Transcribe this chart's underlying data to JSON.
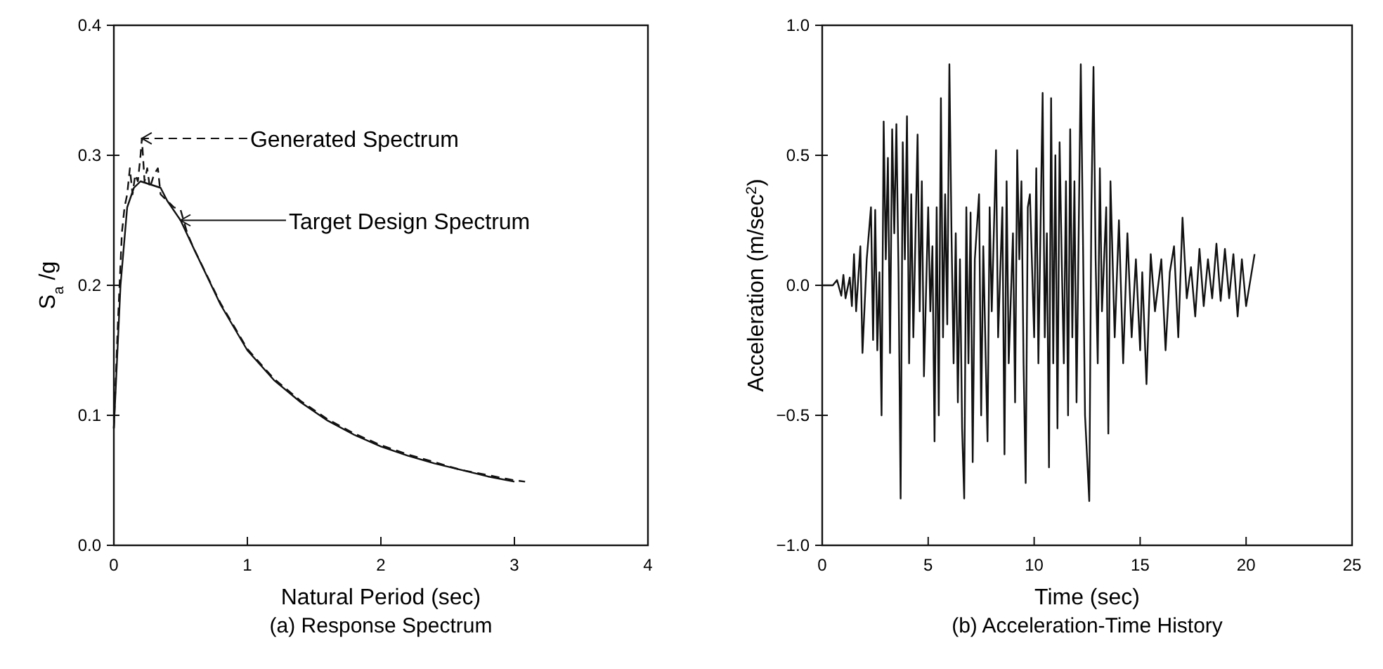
{
  "chart_data": [
    {
      "type": "line",
      "title": "(a) Response Spectrum",
      "xlabel": "Natural Period (sec)",
      "ylabel": "S$_{a}$ /g",
      "xlim": [
        0,
        4
      ],
      "ylim": [
        0,
        0.4
      ],
      "xticks": [
        0,
        1,
        2,
        3,
        4
      ],
      "yticks": [
        {
          "value": 0,
          "label": "0.0"
        },
        {
          "value": 0.1,
          "label": "0.1"
        },
        {
          "value": 0.2,
          "label": "0.2"
        },
        {
          "value": 0.3,
          "label": "0.3"
        },
        {
          "value": 0.4,
          "label": "0.4"
        }
      ],
      "grid": false,
      "legend": "top",
      "series": [
        {
          "name": "Generated Spectrum",
          "color": "#111111",
          "line_style": "dashed",
          "x": [
            0,
            0.03,
            0.06,
            0.08,
            0.1,
            0.12,
            0.14,
            0.16,
            0.18,
            0.2,
            0.21,
            0.23,
            0.25,
            0.27,
            0.3,
            0.33,
            0.35,
            0.4,
            0.45,
            0.5,
            0.55,
            0.6,
            0.8,
            1.0,
            1.2,
            1.4,
            1.6,
            1.8,
            2.0,
            2.2,
            2.4,
            2.6,
            2.8,
            3.0,
            3.08
          ],
          "values": [
            0.09,
            0.17,
            0.24,
            0.26,
            0.27,
            0.29,
            0.27,
            0.285,
            0.28,
            0.3,
            0.313,
            0.28,
            0.29,
            0.275,
            0.285,
            0.29,
            0.27,
            0.265,
            0.26,
            0.258,
            0.24,
            0.228,
            0.186,
            0.151,
            0.128,
            0.111,
            0.097,
            0.086,
            0.077,
            0.07,
            0.064,
            0.058,
            0.054,
            0.05,
            0.049
          ]
        },
        {
          "name": "Target Design Spectrum",
          "color": "#111111",
          "line_style": "solid",
          "x": [
            0,
            0.05,
            0.1,
            0.15,
            0.2,
            0.35,
            0.4,
            0.5,
            0.6,
            0.8,
            1.0,
            1.2,
            1.4,
            1.6,
            1.8,
            2.0,
            2.2,
            2.4,
            2.6,
            2.8,
            3.0
          ],
          "values": [
            0.09,
            0.2,
            0.26,
            0.275,
            0.28,
            0.275,
            0.265,
            0.25,
            0.228,
            0.185,
            0.15,
            0.127,
            0.11,
            0.096,
            0.085,
            0.076,
            0.069,
            0.063,
            0.058,
            0.053,
            0.049
          ]
        }
      ]
    },
    {
      "type": "line",
      "title": "(b) Acceleration-Time History",
      "xlabel": "Time (sec)",
      "ylabel": "Acceleration (m/sec$^{2}$)",
      "xlim": [
        0,
        25
      ],
      "ylim": [
        -1,
        1
      ],
      "xticks": [
        0,
        5,
        10,
        15,
        20,
        25
      ],
      "yticks": [
        {
          "value": -1,
          "label": "−1.0"
        },
        {
          "value": -0.5,
          "label": "−0.5"
        },
        {
          "value": 0,
          "label": "0.0"
        },
        {
          "value": 0.5,
          "label": "0.5"
        },
        {
          "value": 1,
          "label": "1.0"
        }
      ],
      "grid": false,
      "legend": false,
      "series": [
        {
          "color": "#111111",
          "line_style": "solid",
          "x": [
            0,
            0.5,
            0.7,
            0.9,
            1.0,
            1.1,
            1.3,
            1.4,
            1.5,
            1.6,
            1.8,
            1.9,
            2.1,
            2.3,
            2.4,
            2.5,
            2.6,
            2.7,
            2.8,
            2.9,
            3.0,
            3.1,
            3.2,
            3.3,
            3.4,
            3.5,
            3.6,
            3.7,
            3.8,
            3.9,
            4.0,
            4.1,
            4.2,
            4.3,
            4.5,
            4.6,
            4.7,
            4.8,
            5.0,
            5.1,
            5.2,
            5.3,
            5.4,
            5.5,
            5.6,
            5.7,
            5.8,
            5.9,
            6.0,
            6.1,
            6.2,
            6.3,
            6.4,
            6.5,
            6.6,
            6.7,
            6.8,
            6.9,
            7.0,
            7.1,
            7.2,
            7.4,
            7.5,
            7.6,
            7.8,
            7.9,
            8.0,
            8.2,
            8.3,
            8.5,
            8.6,
            8.7,
            8.8,
            9.0,
            9.1,
            9.2,
            9.3,
            9.4,
            9.5,
            9.6,
            9.7,
            9.8,
            10.0,
            10.1,
            10.2,
            10.4,
            10.5,
            10.6,
            10.7,
            10.8,
            10.9,
            11.0,
            11.1,
            11.2,
            11.3,
            11.4,
            11.5,
            11.6,
            11.7,
            11.8,
            11.9,
            12.0,
            12.2,
            12.3,
            12.4,
            12.6,
            12.7,
            12.8,
            12.9,
            13.0,
            13.1,
            13.2,
            13.4,
            13.5,
            13.6,
            13.8,
            14.0,
            14.2,
            14.4,
            14.6,
            14.8,
            15.0,
            15.1,
            15.3,
            15.5,
            15.7,
            16.0,
            16.2,
            16.4,
            16.6,
            16.8,
            17.0,
            17.2,
            17.4,
            17.6,
            17.8,
            18.0,
            18.2,
            18.4,
            18.6,
            18.8,
            19.0,
            19.2,
            19.4,
            19.6,
            19.8,
            20.0,
            20.2,
            20.4
          ],
          "values": [
            0,
            0,
            0.02,
            -0.04,
            0.04,
            -0.05,
            0.03,
            -0.08,
            0.12,
            -0.1,
            0.15,
            -0.26,
            0.1,
            0.3,
            -0.21,
            0.29,
            -0.25,
            0.05,
            -0.5,
            0.63,
            0.1,
            0.49,
            -0.26,
            0.6,
            0.2,
            0.62,
            0.05,
            -0.82,
            0.55,
            0.1,
            0.65,
            -0.3,
            0.35,
            -0.2,
            0.58,
            -0.1,
            0.4,
            -0.35,
            0.3,
            -0.1,
            0.15,
            -0.6,
            0.3,
            -0.5,
            0.72,
            -0.2,
            0.35,
            -0.15,
            0.85,
            0.2,
            -0.3,
            0.2,
            -0.45,
            0.1,
            -0.55,
            -0.82,
            0.3,
            -0.3,
            0.28,
            -0.68,
            0.1,
            0.35,
            -0.5,
            0.15,
            -0.6,
            0.3,
            -0.1,
            0.52,
            -0.2,
            0.3,
            -0.65,
            0.4,
            -0.3,
            0.2,
            -0.45,
            0.52,
            0.1,
            0.4,
            -0.3,
            -0.76,
            0.3,
            0.35,
            -0.2,
            0.45,
            -0.3,
            0.74,
            -0.2,
            0.2,
            -0.7,
            0.72,
            -0.3,
            0.5,
            -0.55,
            0.55,
            0.1,
            -0.3,
            0.4,
            -0.5,
            0.6,
            -0.2,
            0.4,
            -0.45,
            0.85,
            0.2,
            -0.5,
            -0.83,
            0.3,
            0.84,
            0.1,
            -0.3,
            0.45,
            -0.1,
            0.3,
            -0.57,
            0.4,
            -0.2,
            0.25,
            -0.3,
            0.2,
            -0.2,
            0.1,
            -0.25,
            0.05,
            -0.38,
            0.12,
            -0.1,
            0.1,
            -0.25,
            0.05,
            0.15,
            -0.2,
            0.26,
            -0.05,
            0.07,
            -0.12,
            0.14,
            -0.08,
            0.1,
            -0.05,
            0.16,
            -0.06,
            0.14,
            -0.05,
            0.12,
            -0.12,
            0.1,
            -0.08,
            0.02,
            0.12
          ]
        }
      ]
    }
  ]
}
